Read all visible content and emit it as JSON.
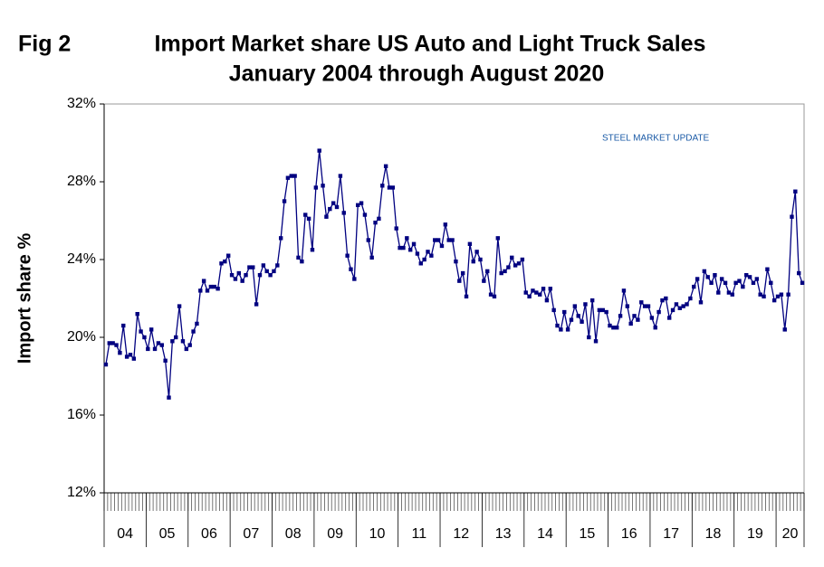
{
  "chart_data": {
    "type": "line",
    "fig_label": "Fig 2",
    "title": "Import Market share US Auto and Light Truck Sales",
    "subtitle": "January 2004 through August 2020",
    "y_label": "Import share %",
    "logo": "STEEL MARKET UPDATE",
    "year_labels": [
      "04",
      "05",
      "06",
      "07",
      "08",
      "09",
      "10",
      "11",
      "12",
      "13",
      "14",
      "15",
      "16",
      "17",
      "18",
      "19",
      "20"
    ],
    "color": "#000080",
    "ylim": [
      12,
      32
    ],
    "yticks": [
      {
        "value": 12,
        "label": "12%"
      },
      {
        "value": 16,
        "label": "16%"
      },
      {
        "value": 20,
        "label": "20%"
      },
      {
        "value": 24,
        "label": "24%"
      },
      {
        "value": 28,
        "label": "28%"
      },
      {
        "value": 32,
        "label": "32%"
      }
    ],
    "values": [
      18.6,
      19.7,
      19.7,
      19.6,
      19.2,
      20.6,
      19.0,
      19.1,
      18.9,
      21.2,
      20.3,
      20.0,
      19.4,
      20.4,
      19.4,
      19.7,
      19.6,
      18.8,
      16.9,
      19.8,
      20.0,
      21.6,
      19.8,
      19.4,
      19.6,
      20.3,
      20.7,
      22.4,
      22.9,
      22.4,
      22.6,
      22.6,
      22.5,
      23.8,
      23.9,
      24.2,
      23.2,
      23.0,
      23.3,
      22.9,
      23.2,
      23.6,
      23.6,
      21.7,
      23.2,
      23.7,
      23.4,
      23.2,
      23.4,
      23.7,
      25.1,
      27.0,
      28.2,
      28.3,
      28.3,
      24.1,
      23.9,
      26.3,
      26.1,
      24.5,
      27.7,
      29.6,
      27.8,
      26.2,
      26.6,
      26.9,
      26.7,
      28.3,
      26.4,
      24.2,
      23.5,
      23.0,
      26.8,
      26.9,
      26.3,
      25.0,
      24.1,
      25.9,
      26.1,
      27.8,
      28.8,
      27.7,
      27.7,
      25.6,
      24.6,
      24.6,
      25.1,
      24.5,
      24.8,
      24.3,
      23.8,
      24.0,
      24.4,
      24.2,
      25.0,
      25.0,
      24.7,
      25.8,
      25.0,
      25.0,
      23.9,
      22.9,
      23.3,
      22.1,
      24.8,
      23.9,
      24.4,
      24.0,
      22.9,
      23.4,
      22.2,
      22.1,
      25.1,
      23.3,
      23.4,
      23.6,
      24.1,
      23.7,
      23.8,
      24.0,
      22.3,
      22.1,
      22.4,
      22.3,
      22.2,
      22.5,
      21.9,
      22.5,
      21.4,
      20.6,
      20.4,
      21.3,
      20.4,
      20.9,
      21.6,
      21.1,
      20.8,
      21.7,
      20.0,
      21.9,
      19.8,
      21.4,
      21.4,
      21.3,
      20.6,
      20.5,
      20.5,
      21.1,
      22.4,
      21.6,
      20.7,
      21.1,
      20.9,
      21.8,
      21.6,
      21.6,
      21.0,
      20.5,
      21.3,
      21.9,
      22.0,
      21.0,
      21.4,
      21.7,
      21.5,
      21.6,
      21.7,
      22.0,
      22.6,
      23.0,
      21.8,
      23.4,
      23.1,
      22.8,
      23.2,
      22.3,
      23.0,
      22.8,
      22.3,
      22.2,
      22.8,
      22.9,
      22.6,
      23.2,
      23.1,
      22.8,
      23.0,
      22.2,
      22.1,
      23.5,
      22.8,
      21.9,
      22.1,
      22.2,
      20.4,
      22.2,
      26.2,
      27.5,
      23.3,
      22.8
    ]
  }
}
